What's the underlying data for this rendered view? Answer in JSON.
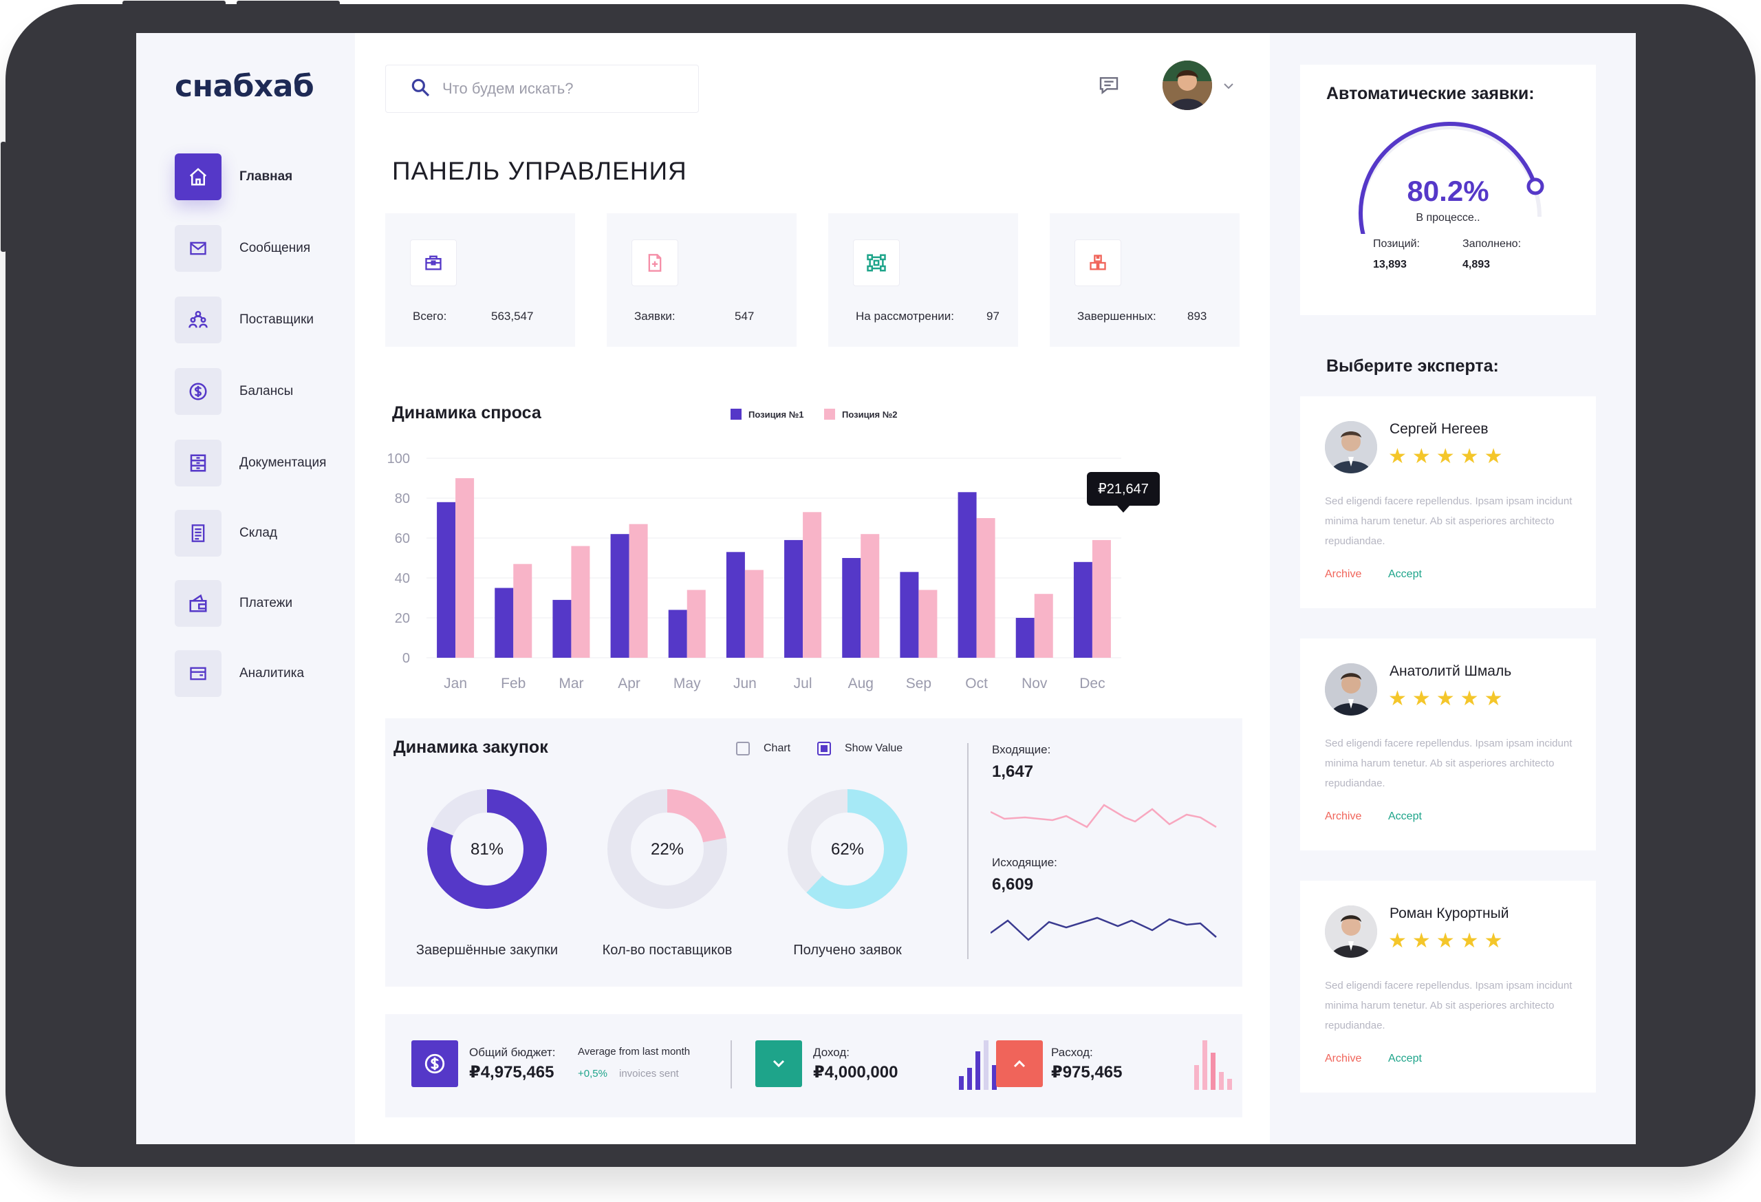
{
  "app": {
    "logo": "снабхаб",
    "page_title": "ПАНЕЛЬ УПРАВЛЕНИЯ"
  },
  "sidebar": {
    "items": [
      {
        "label": "Главная",
        "icon": "home-icon",
        "active": true
      },
      {
        "label": "Сообщения",
        "icon": "mail-icon"
      },
      {
        "label": "Поставщики",
        "icon": "suppliers-icon"
      },
      {
        "label": "Балансы",
        "icon": "dollar-icon"
      },
      {
        "label": "Документация",
        "icon": "document-icon"
      },
      {
        "label": "Склад",
        "icon": "warehouse-icon"
      },
      {
        "label": "Платежи",
        "icon": "wallet-icon"
      },
      {
        "label": "Аналитика",
        "icon": "analytics-icon"
      }
    ]
  },
  "search": {
    "placeholder": "Что будем искать?"
  },
  "stats": [
    {
      "label": "Всего:",
      "value": "563,547",
      "icon": "briefcase-icon"
    },
    {
      "label": "Заявки:",
      "value": "547",
      "icon": "add-file-icon"
    },
    {
      "label": "На рассмотрении:",
      "value": "97",
      "icon": "network-icon"
    },
    {
      "label": "Завершенных:",
      "value": "893",
      "icon": "boxes-icon"
    }
  ],
  "demand": {
    "title": "Динамика спроса",
    "legend": [
      "Позиция №1",
      "Позиция №2"
    ],
    "tooltip": "₽21,647"
  },
  "chart_data": {
    "type": "bar",
    "title": "Динамика спроса",
    "categories": [
      "Jan",
      "Feb",
      "Mar",
      "Apr",
      "May",
      "Jun",
      "Jul",
      "Aug",
      "Sep",
      "Oct",
      "Nov",
      "Dec"
    ],
    "series": [
      {
        "name": "Позиция №1",
        "values": [
          78,
          35,
          29,
          62,
          24,
          53,
          59,
          50,
          43,
          83,
          20,
          48
        ]
      },
      {
        "name": "Позиция №2",
        "values": [
          90,
          47,
          56,
          67,
          34,
          44,
          73,
          62,
          34,
          70,
          32,
          59
        ]
      }
    ],
    "yticks": [
      0,
      20,
      40,
      60,
      80,
      100
    ],
    "ylim": [
      0,
      100
    ],
    "colors": [
      "#5538c8",
      "#f8b4c8"
    ],
    "grid": true,
    "legend_position": "top"
  },
  "purchases": {
    "title": "Динамика закупок",
    "chart_toggle": "Chart",
    "show_value_toggle": "Show Value",
    "donuts": [
      {
        "pct": 81,
        "pct_label": "81%",
        "label": "Завершённые закупки",
        "color": "#5538c8",
        "track": "#e6e6f2"
      },
      {
        "pct": 22,
        "pct_label": "22%",
        "label": "Кол-во поставщиков",
        "color": "#f8b4c8",
        "track": "#e6e6f0"
      },
      {
        "pct": 62,
        "pct_label": "62%",
        "label": "Получено заявок",
        "color": "#a6e9f6",
        "track": "#e8e8f0"
      }
    ],
    "incoming_label": "Входящие:",
    "incoming_value": "1,647",
    "outgoing_label": "Исходящие:",
    "outgoing_value": "6,609"
  },
  "budget": {
    "total_label": "Общий бюджет:",
    "total_value": "₽4,975,465",
    "avg_label": "Average from last month",
    "delta": "+0,5%",
    "delta_suffix": "invoices sent",
    "income_label": "Доход:",
    "income_value": "₽4,000,000",
    "expense_label": "Расход:",
    "expense_value": "₽975,465"
  },
  "auto": {
    "title": "Автоматические заявки:",
    "percent": 80.2,
    "percent_label": "80.2%",
    "status": "В процессе..",
    "positions_label": "Позиций:",
    "positions_value": "13,893",
    "filled_label": "Заполнено:",
    "filled_value": "4,893"
  },
  "experts": {
    "title": "Выберите эксперта:",
    "items": [
      {
        "name": "Сергей Негеев",
        "stars": "★★★★★",
        "desc": "Sed eligendi facere repellendus. Ipsam ipsam incidunt minima harum tenetur. Ab sit asperiores architecto repudiandae.",
        "archive": "Archive",
        "accept": "Accept"
      },
      {
        "name": "Анатолитй Шмаль",
        "stars": "★★★★★",
        "desc": "Sed eligendi facere repellendus. Ipsam ipsam incidunt minima harum tenetur. Ab sit asperiores architecto repudiandae.",
        "archive": "Archive",
        "accept": "Accept"
      },
      {
        "name": "Роман Курортный",
        "stars": "★★★★★",
        "desc": "Sed eligendi facere repellendus. Ipsam ipsam incidunt minima harum tenetur. Ab sit asperiores architecto repudiandae.",
        "archive": "Archive",
        "accept": "Accept"
      }
    ]
  }
}
